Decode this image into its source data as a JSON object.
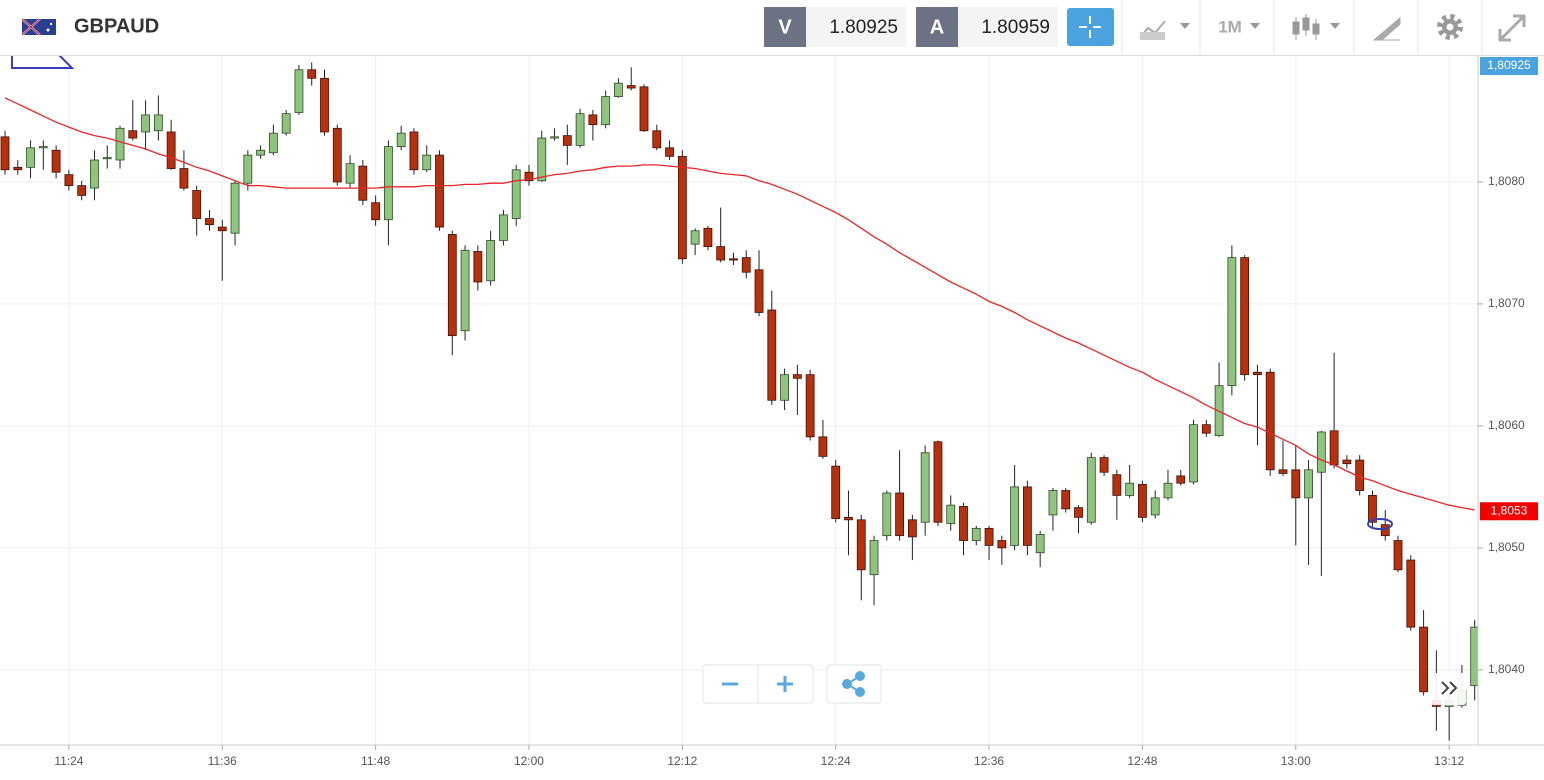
{
  "header": {
    "symbol": "GBPAUD",
    "bid_label": "V",
    "bid": "1.80925",
    "ask_label": "A",
    "ask": "1.80959",
    "timeframe": "1M"
  },
  "chart_data": {
    "type": "candlestick",
    "categories": [
      null,
      null,
      null,
      null,
      null,
      "11:24",
      null,
      null,
      null,
      null,
      null,
      null,
      null,
      null,
      null,
      null,
      null,
      "11:36",
      null,
      null,
      null,
      null,
      null,
      null,
      null,
      null,
      null,
      null,
      null,
      "11:48",
      null,
      null,
      null,
      null,
      null,
      null,
      null,
      null,
      null,
      null,
      null,
      "12:00",
      null,
      null,
      null,
      null,
      null,
      null,
      null,
      null,
      null,
      null,
      null,
      "12:12",
      null,
      null,
      null,
      null,
      null,
      null,
      null,
      null,
      null,
      null,
      null,
      "12:24",
      null,
      null,
      null,
      null,
      null,
      null,
      null,
      null,
      null,
      null,
      null,
      "12:36",
      null,
      null,
      null,
      null,
      null,
      null,
      null,
      null,
      null,
      null,
      null,
      "12:48",
      null,
      null,
      null,
      null,
      null,
      null,
      null,
      null,
      null,
      null,
      null,
      "13:00",
      null,
      null,
      null,
      null,
      null,
      null,
      null,
      null,
      null,
      null,
      null,
      "13:12",
      null,
      null
    ],
    "open": [
      1.80837,
      1.80812,
      1.80812,
      1.80828,
      1.80826,
      1.80806,
      1.80797,
      1.80795,
      1.80819,
      1.80818,
      1.80842,
      1.80841,
      1.80842,
      1.80841,
      1.80811,
      1.80793,
      1.8077,
      1.80763,
      1.80758,
      1.80799,
      1.80822,
      1.80824,
      1.8084,
      1.80857,
      1.80892,
      1.80885,
      1.80844,
      1.80799,
      1.80813,
      1.80783,
      1.80769,
      1.80829,
      1.80841,
      1.8081,
      1.80822,
      1.80757,
      1.80678,
      1.80743,
      1.80719,
      1.80752,
      1.8077,
      1.80808,
      1.80801,
      1.80836,
      1.80838,
      1.8083,
      1.80855,
      1.80847,
      1.8087,
      1.80879,
      1.80878,
      1.80842,
      1.80828,
      1.80821,
      1.80749,
      1.80762,
      1.80747,
      1.80737,
      1.80738,
      1.80728,
      1.80695,
      1.80621,
      1.80642,
      1.80642,
      1.80591,
      1.80567,
      1.80525,
      1.80523,
      1.80478,
      1.8051,
      1.80545,
      1.80523,
      1.80521,
      1.80587,
      1.8052,
      1.80534,
      1.80506,
      1.80516,
      1.80506,
      1.80502,
      1.8055,
      1.80496,
      1.80527,
      1.80547,
      1.80533,
      1.80521,
      1.80574,
      1.8056,
      1.80543,
      1.80552,
      1.80527,
      1.80541,
      1.80559,
      1.80554,
      1.80601,
      1.80592,
      1.80633,
      1.80738,
      1.80644,
      1.80644,
      1.80564,
      1.80564,
      1.80541,
      1.80562,
      1.80596,
      1.80572,
      1.80572,
      1.80543,
      1.80519,
      1.80506,
      1.8049,
      1.80435,
      1.80375,
      1.8037,
      1.80371,
      1.80387
    ],
    "high": [
      1.80842,
      1.80818,
      1.80834,
      1.80834,
      1.8083,
      1.8081,
      1.80801,
      1.80826,
      1.8083,
      1.80846,
      1.80867,
      1.80867,
      1.80871,
      1.80851,
      1.80826,
      1.80797,
      1.80777,
      1.80769,
      1.80801,
      1.80826,
      1.8083,
      1.80847,
      1.80859,
      1.80896,
      1.80898,
      1.80892,
      1.80847,
      1.80822,
      1.80818,
      1.80789,
      1.80834,
      1.80846,
      1.80844,
      1.8083,
      1.80826,
      1.8076,
      1.80748,
      1.80748,
      1.8076,
      1.80777,
      1.80814,
      1.80814,
      1.80842,
      1.80844,
      1.80847,
      1.8086,
      1.80859,
      1.80875,
      1.80885,
      1.80894,
      1.8088,
      1.80847,
      1.80834,
      1.80826,
      1.80762,
      1.80764,
      1.80779,
      1.80742,
      1.80744,
      1.80744,
      1.80711,
      1.80647,
      1.8065,
      1.80646,
      1.80605,
      1.80572,
      1.80547,
      1.80527,
      1.8051,
      1.80547,
      1.8058,
      1.80527,
      1.80584,
      1.80588,
      1.80543,
      1.80537,
      1.80518,
      1.80518,
      1.8051,
      1.80568,
      1.80555,
      1.80514,
      1.80549,
      1.80549,
      1.80535,
      1.80578,
      1.80576,
      1.80564,
      1.80568,
      1.80555,
      1.80547,
      1.80564,
      1.80564,
      1.80605,
      1.80605,
      1.80652,
      1.80748,
      1.8074,
      1.8065,
      1.80647,
      1.80588,
      1.80584,
      1.80572,
      1.80596,
      1.8066,
      1.80576,
      1.80576,
      1.80547,
      1.80531,
      1.8051,
      1.80494,
      1.80449,
      1.80416,
      1.80379,
      1.80404,
      1.80441
    ],
    "low": [
      1.80806,
      1.80806,
      1.80803,
      1.8081,
      1.80803,
      1.80793,
      1.80785,
      1.80785,
      1.80811,
      1.80811,
      1.80834,
      1.80826,
      1.80834,
      1.8081,
      1.80793,
      1.80756,
      1.8076,
      1.80719,
      1.80748,
      1.80793,
      1.80819,
      1.80822,
      1.80838,
      1.80855,
      1.80879,
      1.80838,
      1.80797,
      1.80795,
      1.80781,
      1.80764,
      1.80748,
      1.80826,
      1.80806,
      1.80808,
      1.8076,
      1.80658,
      1.8067,
      1.80711,
      1.80715,
      1.80748,
      1.80764,
      1.80797,
      1.808,
      1.80834,
      1.80814,
      1.80828,
      1.80834,
      1.80844,
      1.80869,
      1.80875,
      1.80841,
      1.80826,
      1.80818,
      1.80733,
      1.8074,
      1.80744,
      1.80734,
      1.80732,
      1.80721,
      1.8069,
      1.80617,
      1.80613,
      1.80609,
      1.80588,
      1.80573,
      1.80521,
      1.80494,
      1.80457,
      1.80453,
      1.80506,
      1.80506,
      1.8049,
      1.8051,
      1.80518,
      1.80514,
      1.80494,
      1.80502,
      1.8049,
      1.80486,
      1.80498,
      1.80494,
      1.80484,
      1.80514,
      1.80529,
      1.80512,
      1.80519,
      1.80559,
      1.80523,
      1.80541,
      1.80521,
      1.80524,
      1.80539,
      1.80551,
      1.80552,
      1.80591,
      1.80591,
      1.80625,
      1.80637,
      1.80584,
      1.80559,
      1.80559,
      1.80502,
      1.80486,
      1.80477,
      1.80565,
      1.80565,
      1.80543,
      1.80516,
      1.80506,
      1.8048,
      1.80432,
      1.80379,
      1.8035,
      1.80342,
      1.80369,
      1.80375
    ],
    "close": [
      1.8081,
      1.8081,
      1.80828,
      1.80829,
      1.80808,
      1.80797,
      1.80789,
      1.80818,
      1.8082,
      1.80844,
      1.80836,
      1.80855,
      1.80855,
      1.80811,
      1.80795,
      1.8077,
      1.80765,
      1.8076,
      1.80799,
      1.80822,
      1.80826,
      1.8084,
      1.80856,
      1.80892,
      1.80885,
      1.80841,
      1.808,
      1.80815,
      1.80785,
      1.80769,
      1.80829,
      1.8084,
      1.8081,
      1.80822,
      1.80763,
      1.80674,
      1.80744,
      1.80718,
      1.80752,
      1.80773,
      1.8081,
      1.80801,
      1.80836,
      1.80837,
      1.8083,
      1.80856,
      1.80847,
      1.8087,
      1.80881,
      1.80877,
      1.80842,
      1.80828,
      1.80821,
      1.80737,
      1.8076,
      1.80747,
      1.80736,
      1.80736,
      1.80726,
      1.80693,
      1.80621,
      1.80642,
      1.80639,
      1.80591,
      1.80575,
      1.80524,
      1.80523,
      1.80482,
      1.80506,
      1.80545,
      1.8051,
      1.80509,
      1.80578,
      1.80521,
      1.80535,
      1.80506,
      1.80516,
      1.80502,
      1.805,
      1.8055,
      1.80502,
      1.80511,
      1.80547,
      1.80532,
      1.80525,
      1.80574,
      1.80562,
      1.80543,
      1.80553,
      1.80525,
      1.80541,
      1.80553,
      1.80553,
      1.80601,
      1.80594,
      1.80633,
      1.80738,
      1.80642,
      1.80642,
      1.80564,
      1.80561,
      1.80541,
      1.80564,
      1.80595,
      1.80568,
      1.80569,
      1.80547,
      1.80521,
      1.8051,
      1.80482,
      1.80435,
      1.80382,
      1.8037,
      1.80375,
      1.80383,
      1.80435
    ],
    "up_color": "#8fc47f",
    "down_color": "#b8310f",
    "ma": {
      "color": "#e8262a",
      "values": [
        1.80869,
        1.80864,
        1.80859,
        1.80854,
        1.80849,
        1.80845,
        1.80841,
        1.80838,
        1.80836,
        1.80833,
        1.8083,
        1.80827,
        1.80823,
        1.8082,
        1.80816,
        1.80812,
        1.80809,
        1.80805,
        1.80801,
        1.80797,
        1.80797,
        1.80796,
        1.80795,
        1.80795,
        1.80795,
        1.80795,
        1.80795,
        1.80795,
        1.80795,
        1.80795,
        1.80796,
        1.80796,
        1.80796,
        1.80797,
        1.80797,
        1.80797,
        1.80798,
        1.80798,
        1.80799,
        1.80799,
        1.80801,
        1.80802,
        1.80804,
        1.80806,
        1.80807,
        1.80809,
        1.8081,
        1.80812,
        1.80813,
        1.80813,
        1.80814,
        1.80814,
        1.80813,
        1.80812,
        1.80811,
        1.80809,
        1.80807,
        1.80806,
        1.80805,
        1.80801,
        1.80798,
        1.80794,
        1.8079,
        1.80785,
        1.8078,
        1.80775,
        1.80769,
        1.80762,
        1.80755,
        1.80749,
        1.80742,
        1.80736,
        1.8073,
        1.80724,
        1.80718,
        1.80713,
        1.80708,
        1.80702,
        1.80698,
        1.80693,
        1.80687,
        1.80682,
        1.80677,
        1.80672,
        1.80668,
        1.80663,
        1.80658,
        1.80653,
        1.80648,
        1.80644,
        1.80638,
        1.80633,
        1.80628,
        1.80623,
        1.80617,
        1.80612,
        1.80607,
        1.80602,
        1.80599,
        1.80594,
        1.80589,
        1.80584,
        1.80577,
        1.80572,
        1.80568,
        1.80563,
        1.80558,
        1.80555,
        1.80551,
        1.80547,
        1.80544,
        1.80541,
        1.80538,
        1.80535,
        1.80533,
        1.80531
      ]
    },
    "ylim": [
      1.8034,
      1.809
    ],
    "yticks": [
      {
        "value": 1.804,
        "label": "1,8040"
      },
      {
        "value": 1.805,
        "label": "1,8050"
      },
      {
        "value": 1.806,
        "label": "1,8060"
      },
      {
        "value": 1.807,
        "label": "1,8070"
      },
      {
        "value": 1.808,
        "label": "1,8080"
      }
    ],
    "grid": true,
    "price_tags": [
      {
        "value": 1.80925,
        "label": "1,80925",
        "color": "#4aa3df"
      },
      {
        "value": 1.8053,
        "label": "1,8053",
        "color": "#f00000"
      }
    ]
  }
}
